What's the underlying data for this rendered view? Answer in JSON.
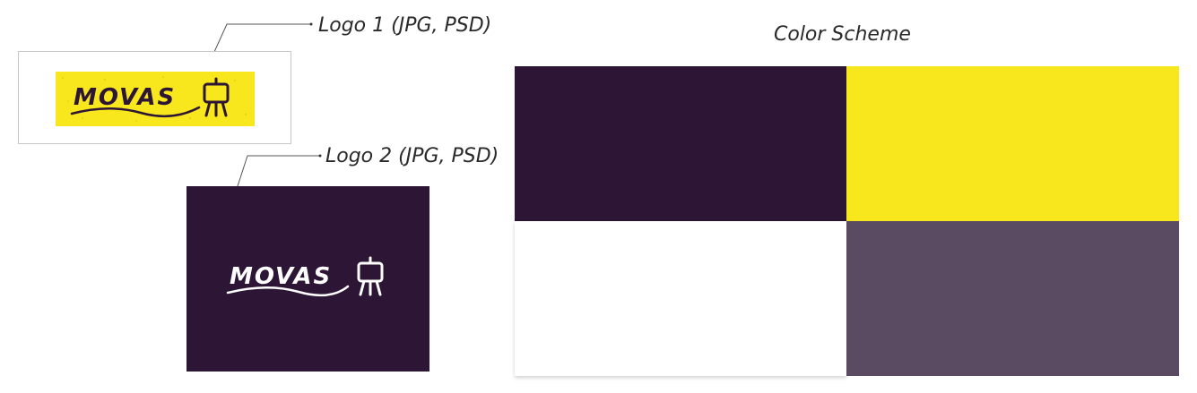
{
  "logos": [
    {
      "label": "Logo 1 (JPG, PSD)",
      "wordmark": "MOVAS",
      "background": "#f8e71c",
      "ink": "#2c1535"
    },
    {
      "label": "Logo 2 (JPG, PSD)",
      "wordmark": "MOVAS",
      "background": "#2c1535",
      "ink": "#ffffff"
    }
  ],
  "color_scheme": {
    "title": "Color Scheme",
    "swatches": [
      "#2c1535",
      "#f8e71c",
      "#ffffff",
      "#5a4b62"
    ]
  }
}
